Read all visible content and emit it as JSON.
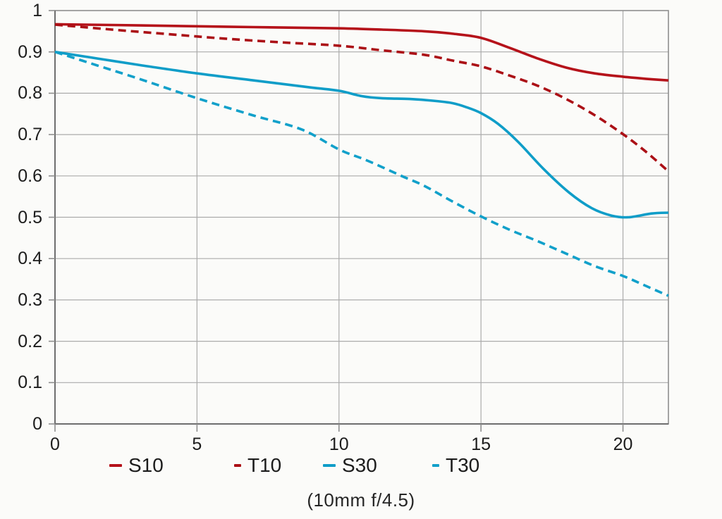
{
  "chart_data": {
    "type": "line",
    "title": "",
    "caption": "(10mm f/4.5)",
    "xlabel": "",
    "ylabel": "",
    "xlim": [
      0,
      21.6
    ],
    "ylim": [
      0,
      1
    ],
    "grid": true,
    "legend_position": "bottom",
    "x_tick_values": [
      0,
      5,
      10,
      15,
      20
    ],
    "x_tick_labels": [
      "0",
      "5",
      "10",
      "15",
      "20"
    ],
    "y_tick_values": [
      0,
      0.1,
      0.2,
      0.3,
      0.4,
      0.5,
      0.6,
      0.7,
      0.8,
      0.9,
      1
    ],
    "y_tick_labels": [
      "0",
      "0.1",
      "0.2",
      "0.3",
      "0.4",
      "0.5",
      "0.6",
      "0.7",
      "0.8",
      "0.9",
      "1"
    ],
    "series": [
      {
        "name": "S10",
        "style": "solid",
        "color": "#b5121a",
        "points": [
          [
            0,
            0.967
          ],
          [
            2,
            0.965
          ],
          [
            4,
            0.963
          ],
          [
            6,
            0.961
          ],
          [
            8,
            0.959
          ],
          [
            10,
            0.957
          ],
          [
            11.5,
            0.954
          ],
          [
            13,
            0.95
          ],
          [
            14,
            0.944
          ],
          [
            15,
            0.934
          ],
          [
            16,
            0.91
          ],
          [
            17,
            0.884
          ],
          [
            18,
            0.862
          ],
          [
            19,
            0.848
          ],
          [
            20,
            0.84
          ],
          [
            20.8,
            0.835
          ],
          [
            21.6,
            0.831
          ]
        ]
      },
      {
        "name": "T10",
        "style": "dashed",
        "color": "#ab1016",
        "points": [
          [
            0,
            0.966
          ],
          [
            2,
            0.954
          ],
          [
            4,
            0.943
          ],
          [
            6,
            0.932
          ],
          [
            8,
            0.923
          ],
          [
            10,
            0.915
          ],
          [
            11.5,
            0.904
          ],
          [
            13,
            0.893
          ],
          [
            14,
            0.879
          ],
          [
            15,
            0.865
          ],
          [
            16,
            0.843
          ],
          [
            17,
            0.818
          ],
          [
            18,
            0.786
          ],
          [
            19,
            0.747
          ],
          [
            20,
            0.701
          ],
          [
            20.8,
            0.659
          ],
          [
            21.6,
            0.611
          ]
        ]
      },
      {
        "name": "S30",
        "style": "solid",
        "color": "#0f9dc8",
        "points": [
          [
            0,
            0.9
          ],
          [
            1.5,
            0.884
          ],
          [
            3,
            0.868
          ],
          [
            5,
            0.848
          ],
          [
            7,
            0.831
          ],
          [
            9,
            0.814
          ],
          [
            10,
            0.806
          ],
          [
            10.8,
            0.793
          ],
          [
            11.5,
            0.788
          ],
          [
            12.5,
            0.786
          ],
          [
            13.3,
            0.782
          ],
          [
            14,
            0.776
          ],
          [
            14.5,
            0.766
          ],
          [
            15,
            0.752
          ],
          [
            15.6,
            0.726
          ],
          [
            16.3,
            0.683
          ],
          [
            17.2,
            0.617
          ],
          [
            18.1,
            0.56
          ],
          [
            18.9,
            0.522
          ],
          [
            19.6,
            0.504
          ],
          [
            20.2,
            0.5
          ],
          [
            21,
            0.509
          ],
          [
            21.6,
            0.511
          ]
        ]
      },
      {
        "name": "T30",
        "style": "dashed",
        "color": "#11a0ca",
        "points": [
          [
            0,
            0.9
          ],
          [
            1.5,
            0.867
          ],
          [
            3,
            0.834
          ],
          [
            5,
            0.788
          ],
          [
            7,
            0.746
          ],
          [
            8.7,
            0.712
          ],
          [
            10,
            0.664
          ],
          [
            11,
            0.637
          ],
          [
            12.2,
            0.6
          ],
          [
            13,
            0.576
          ],
          [
            14,
            0.538
          ],
          [
            15,
            0.502
          ],
          [
            16,
            0.47
          ],
          [
            17,
            0.442
          ],
          [
            18,
            0.412
          ],
          [
            19,
            0.382
          ],
          [
            20,
            0.358
          ],
          [
            20.8,
            0.334
          ],
          [
            21.6,
            0.31
          ]
        ]
      }
    ],
    "colors": {
      "background": "#fbfbf9",
      "grid": "#ababab",
      "border": "#8f8f8f",
      "axis": "#6e6e6e",
      "tick": "#8f8f8f",
      "text": "#1c1c1c"
    }
  }
}
